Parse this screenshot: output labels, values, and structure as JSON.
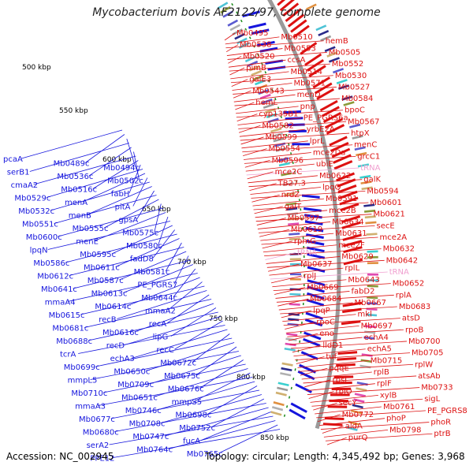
{
  "title": "Mycobacterium bovis AF2122/97, complete genome",
  "footer": {
    "accession": "Accession: NC_002945",
    "topology": "Topology: circular; Length: 4,345,492 bp; Genes: 3,968"
  },
  "colors": {
    "forward": "#dd1111",
    "reverse": "#1515dd",
    "rna": "#f0a0d0",
    "backbone": "#9a9a9a",
    "tick": "#1a8a1a"
  },
  "kbp_ticks": [
    "500 kbp",
    "550 kbp",
    "600 kbp",
    "650 kbp",
    "700 kbp",
    "750 kbp",
    "800 kbp",
    "850 kbp"
  ],
  "forward_labels": [
    "Mb0495",
    "Mb0510",
    "hemB",
    "Mb0538",
    "Mb0553",
    "Mb0505",
    "Mb0520",
    "ccsA",
    "Mb0552",
    "pimB",
    "Mb0514",
    "Mb0530",
    "galE3",
    "Mb0571",
    "Mb0527",
    "Mb0543",
    "menD",
    "Mb0584",
    "hemL",
    "pnp",
    "bpoC",
    "cyp135B1",
    "PE_PGRS6a",
    "Mb0567",
    "Mb0582",
    "yrbE2A",
    "htpX",
    "Mb0599",
    "lprL",
    "menC",
    "Mb0554",
    "mce2Da",
    "grcC1",
    "Mb0596",
    "ubiE",
    "tRNA",
    "mce2C",
    "Mb0622",
    "galK",
    "TB27.3",
    "lpqQ",
    "Mb0594",
    "nrdZ",
    "Mb0591",
    "Mb0601",
    "galT",
    "mce2B",
    "Mb0621",
    "Mb0597",
    "Mb0634",
    "secE",
    "Mb0619",
    "Mb0631",
    "mce2A",
    "rpmG",
    "mce2F",
    "Mb0632",
    "tRNA",
    "Mb0629",
    "Mb0642",
    "Mb0637",
    "rplL",
    "tRNA",
    "rplJ",
    "Mb0643",
    "Mb0652",
    "Mb0669",
    "fabD2",
    "rplA",
    "Mb0684",
    "Mb0667",
    "Mb0683",
    "lpqP",
    "mkl",
    "atsD",
    "rpoC",
    "Mb0697",
    "rpoB",
    "eno",
    "echA4",
    "Mb0700",
    "lldD1",
    "echA5",
    "Mb0705",
    "tuf",
    "Mb0715",
    "rplW",
    "pqqE",
    "rplB",
    "atsAb",
    "rpsJ",
    "rplF",
    "Mb0733",
    "rplO",
    "xylB",
    "sigL",
    "secY",
    "Mb0761",
    "PE_PGRS8",
    "Mb0772",
    "phoP",
    "phoR",
    "aldA",
    "Mb0798",
    "ptrB",
    "purQ"
  ],
  "reverse_labels": [
    "pcaA",
    "Mb0489c",
    "Mb0494c",
    "serB1",
    "Mb0536c",
    "Mb0502c",
    "cmaA2",
    "Mb0516c",
    "fabH",
    "Mb0529c",
    "menA",
    "pitA",
    "Mb0532c",
    "menB",
    "gpsA",
    "Mb0551c",
    "Mb0555c",
    "Mb0575c",
    "Mb0600c",
    "menE",
    "Mb0580c",
    "lpqN",
    "Mb0595c",
    "fadD8",
    "Mb0586c",
    "Mb0611c",
    "Mb0581c",
    "Mb0612c",
    "Mb0587c",
    "PE_PGRS7",
    "Mb0641c",
    "Mb0613c",
    "Mb0644c",
    "mmaA4",
    "Mb0614c",
    "mmaA2",
    "Mb0615c",
    "recB",
    "recA",
    "Mb0681c",
    "Mb0616c",
    "lipG",
    "Mb0688c",
    "recD",
    "recC",
    "tcrA",
    "echA3",
    "Mb0672c",
    "Mb0699c",
    "Mb0650c",
    "Mb0675c",
    "mmpL5",
    "Mb0709c",
    "Mb0676c",
    "Mb0710c",
    "Mb0651c",
    "mmpS5",
    "mmaA3",
    "Mb0746c",
    "Mb0698c",
    "Mb0677c",
    "Mb0708c",
    "Mb0752c",
    "Mb0680c",
    "Mb0747c",
    "fucA",
    "serA2",
    "Mb0764c",
    "Mb0765c",
    "PPE12"
  ]
}
